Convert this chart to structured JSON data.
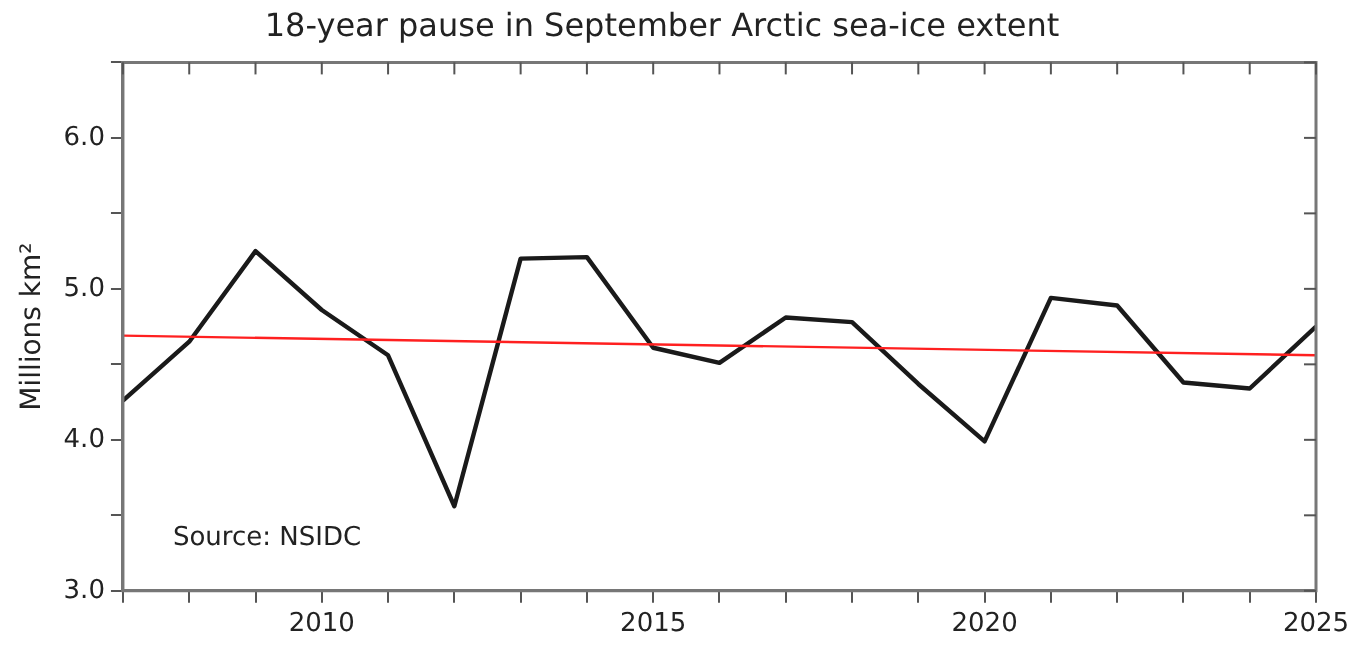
{
  "chart_data": {
    "type": "line",
    "title": "18-year pause in September Arctic sea-ice extent",
    "ylabel": "Millions km²",
    "annotations": [
      "Source: NSIDC"
    ],
    "x": [
      2007,
      2008,
      2009,
      2010,
      2011,
      2012,
      2013,
      2014,
      2015,
      2016,
      2017,
      2018,
      2019,
      2020,
      2021,
      2022,
      2023,
      2024,
      2025
    ],
    "series": [
      {
        "color": "#1a1a1a",
        "values": [
          4.26,
          4.65,
          5.25,
          4.86,
          4.56,
          3.56,
          5.2,
          5.21,
          4.61,
          4.51,
          4.81,
          4.78,
          4.37,
          3.99,
          4.94,
          4.89,
          4.38,
          4.34,
          4.75
        ]
      },
      {
        "type": "line",
        "color": "#ff2020",
        "x": [
          2007,
          2025
        ],
        "values": [
          4.69,
          4.56
        ]
      }
    ],
    "xlim": [
      2007,
      2025
    ],
    "xticks": [
      {
        "value": 2007,
        "label": null
      },
      {
        "value": 2008,
        "label": null
      },
      {
        "value": 2009,
        "label": null
      },
      2010,
      {
        "value": 2011,
        "label": null
      },
      {
        "value": 2012,
        "label": null
      },
      {
        "value": 2013,
        "label": null
      },
      {
        "value": 2014,
        "label": null
      },
      2015,
      {
        "value": 2016,
        "label": null
      },
      {
        "value": 2017,
        "label": null
      },
      {
        "value": 2018,
        "label": null
      },
      {
        "value": 2019,
        "label": null
      },
      2020,
      {
        "value": 2021,
        "label": null
      },
      {
        "value": 2022,
        "label": null
      },
      {
        "value": 2023,
        "label": null
      },
      {
        "value": 2024,
        "label": null
      },
      2025
    ],
    "ylim": [
      3,
      6.5
    ],
    "yticks": [
      {
        "value": 3,
        "label": "3.0"
      },
      {
        "value": 3.5,
        "label": null
      },
      {
        "value": 4,
        "label": "4.0"
      },
      {
        "value": 4.5,
        "label": null
      },
      {
        "value": 5,
        "label": "5.0"
      },
      {
        "value": 5.5,
        "label": null
      },
      {
        "value": 6,
        "label": "6.0"
      },
      {
        "value": 6.5,
        "label": null
      }
    ],
    "grid": false,
    "legend": false,
    "marker": "none",
    "line_style": "solid"
  }
}
